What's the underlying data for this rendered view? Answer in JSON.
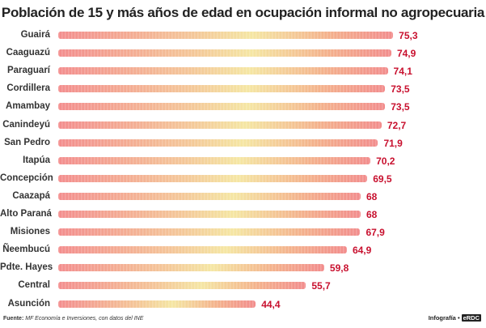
{
  "chart_data": {
    "type": "bar",
    "orientation": "horizontal",
    "title": "Población de 15 y más años de edad en ocupación informal no agropecuaria",
    "categories": [
      "Guairá",
      "Caaguazú",
      "Paraguarí",
      "Cordillera",
      "Amambay",
      "Canindeyú",
      "San Pedro",
      "Itapúa",
      "Concepción",
      "Caazapá",
      "Alto Paraná",
      "Misiones",
      "Ñeembucú",
      "Pdte. Hayes",
      "Central",
      "Asunción"
    ],
    "values": [
      75.3,
      74.9,
      74.1,
      73.5,
      73.5,
      72.7,
      71.9,
      70.2,
      69.5,
      68,
      68,
      67.9,
      64.9,
      59.8,
      55.7,
      44.4
    ],
    "value_labels": [
      "75,3",
      "74,9",
      "74,1",
      "73,5",
      "73,5",
      "72,7",
      "71,9",
      "70,2",
      "69,5",
      "68",
      "68",
      "67,9",
      "64,9",
      "59,8",
      "55,7",
      "44,4"
    ],
    "xlabel": "",
    "ylabel": "",
    "xlim": [
      0,
      80
    ],
    "grid": false,
    "legend": "none",
    "colors": {
      "value_text": "#c8102e",
      "bar_edge": "#ee8d8d",
      "bar_center": "#f4e6a6"
    }
  },
  "footer": {
    "source_label": "Fuente:",
    "source_text": "MF Economía e Inversiones, con datos del INE",
    "credit_label": "Infografía •",
    "credit_brand": "eRDC"
  }
}
